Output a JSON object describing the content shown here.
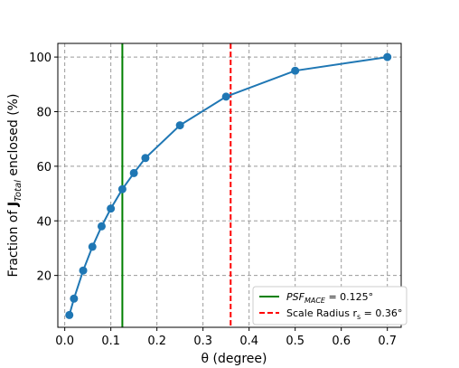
{
  "chart_data": {
    "type": "line",
    "x": [
      0.01,
      0.02,
      0.04,
      0.06,
      0.08,
      0.1,
      0.125,
      0.15,
      0.175,
      0.25,
      0.35,
      0.5,
      0.7
    ],
    "series": [
      {
        "values": [
          5.5,
          11.5,
          21.8,
          30.5,
          38.0,
          44.5,
          51.6,
          57.5,
          63.0,
          75.0,
          85.5,
          95.0,
          100.0
        ],
        "color": "#1f77b4"
      }
    ],
    "xlabel": "θ (degree)",
    "ylabel_prefix": "Fraction of ",
    "ylabel_symbol": "J",
    "ylabel_subscript": "Total",
    "ylabel_suffix": " enclosed (%)",
    "xlim": [
      -0.015,
      0.73
    ],
    "ylim": [
      1,
      105
    ],
    "xticks": [
      0.0,
      0.1,
      0.2,
      0.3,
      0.4,
      0.5,
      0.6,
      0.7
    ],
    "xtick_labels": [
      "0.0",
      "0.1",
      "0.2",
      "0.3",
      "0.4",
      "0.5",
      "0.6",
      "0.7"
    ],
    "yticks": [
      20,
      40,
      60,
      80,
      100
    ],
    "ytick_labels": [
      "20",
      "40",
      "60",
      "80",
      "100"
    ],
    "grid": true,
    "vlines": [
      {
        "x": 0.125,
        "color": "#008000",
        "style": "solid",
        "legend_label_main": "PSF",
        "legend_label_sub": "MACE",
        "legend_label_rest": " = 0.125°"
      },
      {
        "x": 0.36,
        "color": "#ff0000",
        "style": "dashed",
        "legend_label_main": "Scale Radius r",
        "legend_label_sub": "s",
        "legend_label_rest": " = 0.36°"
      }
    ],
    "legend_position": "lower-right"
  }
}
